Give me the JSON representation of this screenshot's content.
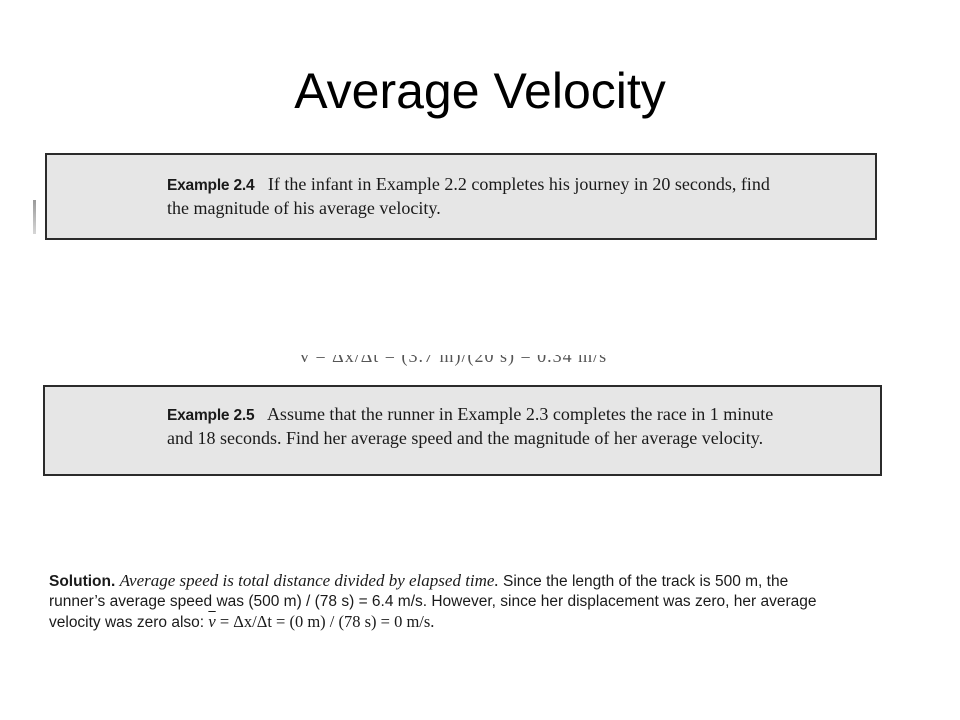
{
  "slide": {
    "title": "Average Velocity"
  },
  "example_2_4": {
    "label": "Example 2.4",
    "text": "If the infant in Example 2.2 completes his journey in 20 seconds, find the magnitude of his average velocity."
  },
  "example_2_5": {
    "label": "Example 2.5",
    "text": "Assume that the runner in Example 2.3 completes the race in 1 minute and 18 seconds. Find her average speed and the magnitude of her average velocity."
  },
  "solution": {
    "label": "Solution.",
    "italic_text": "Average speed is total distance divided by elapsed time.",
    "text_1": " Since the length of the track is 500 m, the runner’s average speed was (500 m) / (78 s) = 6.4 m/s. However, since her displacement was zero, her average velocity was zero also: ",
    "velocity_symbol": "v",
    "formula": " = Δx/Δt = (0 m) / (78 s) = 0 m/s."
  }
}
